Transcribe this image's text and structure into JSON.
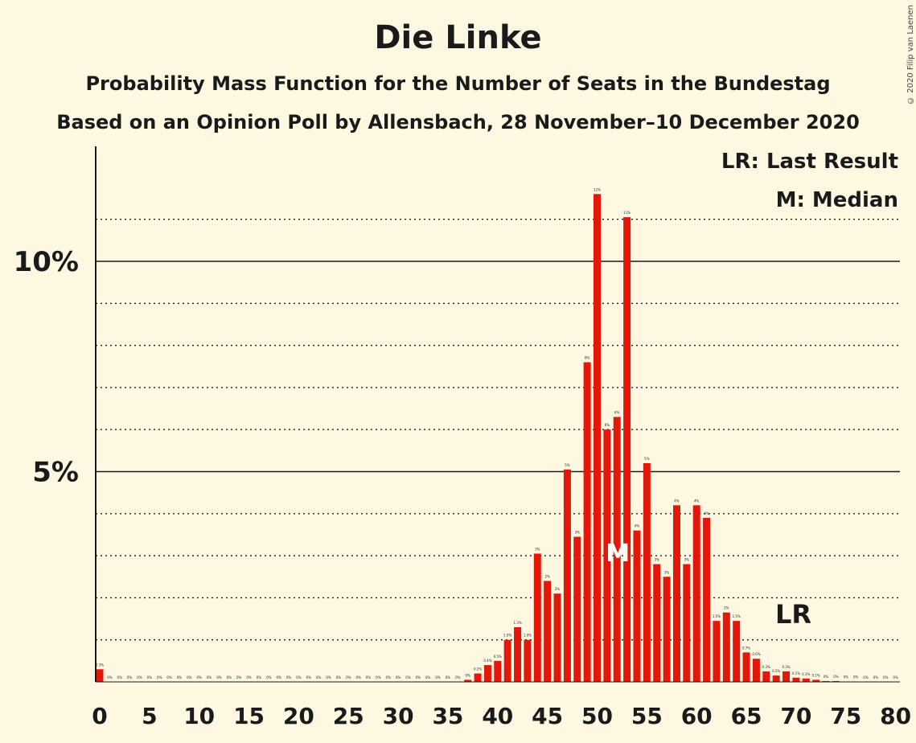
{
  "chart_data": {
    "type": "bar",
    "title": "Die Linke",
    "subtitle": "Probability Mass Function for the Number of Seats in the Bundestag",
    "subtitle2": "Based on an Opinion Poll by Allensbach, 28 November–10 December 2020",
    "copyright": "© 2020 Filip van Laenen",
    "legend": [
      "LR: Last Result",
      "M: Median"
    ],
    "legend_position": "top-right",
    "x_ticks": [
      0,
      5,
      10,
      15,
      20,
      25,
      30,
      35,
      40,
      45,
      50,
      55,
      60,
      65,
      70,
      75,
      80
    ],
    "y_ticks": [
      {
        "value": 5,
        "label": "5%"
      },
      {
        "value": 10,
        "label": "10%"
      }
    ],
    "xlim": [
      0,
      80
    ],
    "ylim": [
      0,
      12.6
    ],
    "grid": "dotted every 1%, solid at 5% and 10%",
    "color": "#e3170a",
    "median": {
      "seats": 52,
      "label": "M"
    },
    "last_result": {
      "seats": 69,
      "label": "LR"
    },
    "x": [
      0,
      1,
      2,
      3,
      4,
      5,
      6,
      7,
      8,
      9,
      10,
      11,
      12,
      13,
      14,
      15,
      16,
      17,
      18,
      19,
      20,
      21,
      22,
      23,
      24,
      25,
      26,
      27,
      28,
      29,
      30,
      31,
      32,
      33,
      34,
      35,
      36,
      37,
      38,
      39,
      40,
      41,
      42,
      43,
      44,
      45,
      46,
      47,
      48,
      49,
      50,
      51,
      52,
      53,
      54,
      55,
      56,
      57,
      58,
      59,
      60,
      61,
      62,
      63,
      64,
      65,
      66,
      67,
      68,
      69,
      70,
      71,
      72,
      73,
      74,
      75,
      76,
      77,
      78,
      79,
      80
    ],
    "values": [
      0.3,
      0,
      0,
      0,
      0,
      0,
      0,
      0,
      0,
      0,
      0,
      0,
      0,
      0,
      0,
      0,
      0,
      0,
      0,
      0,
      0,
      0,
      0,
      0,
      0,
      0,
      0,
      0,
      0,
      0,
      0,
      0,
      0,
      0,
      0,
      0,
      0,
      0.05,
      0.2,
      0.4,
      0.5,
      1.0,
      1.3,
      1.0,
      3.05,
      2.4,
      2.1,
      5.05,
      3.45,
      7.6,
      11.6,
      6.0,
      6.3,
      11.05,
      3.6,
      5.2,
      2.8,
      2.5,
      4.2,
      2.8,
      4.2,
      3.9,
      1.45,
      1.65,
      1.45,
      0.7,
      0.55,
      0.25,
      0.15,
      0.25,
      0.1,
      0.08,
      0.05,
      0.02,
      0.02,
      0.01,
      0.01,
      0,
      0,
      0,
      0
    ],
    "labels": [
      "0.3%",
      "0%",
      "0%",
      "0%",
      "0%",
      "0%",
      "0%",
      "0%",
      "0%",
      "0%",
      "0%",
      "0%",
      "0%",
      "0%",
      "0%",
      "0%",
      "0%",
      "0%",
      "0%",
      "0%",
      "0%",
      "0%",
      "0%",
      "0%",
      "0%",
      "0%",
      "0%",
      "0%",
      "0%",
      "0%",
      "0%",
      "0%",
      "0%",
      "0%",
      "0%",
      "0%",
      "0%",
      "0%",
      "0.2%",
      "0.4%",
      "0.5%",
      "1.0%",
      "1.3%",
      "1.0%",
      "3%",
      "2%",
      "2%",
      "5%",
      "3%",
      "8%",
      "12%",
      "6%",
      "6%",
      "11%",
      "4%",
      "5%",
      "3%",
      "3%",
      "4%",
      "3%",
      "4%",
      "4%",
      "1.5%",
      "2%",
      "1.5%",
      "0.7%",
      "0.6%",
      "0.3%",
      "0.2%",
      "0.3%",
      "0.1%",
      "0.1%",
      "0.1%",
      "0%",
      "0%",
      "0%",
      "0%",
      "0%",
      "0%",
      "0%",
      "0%"
    ]
  }
}
